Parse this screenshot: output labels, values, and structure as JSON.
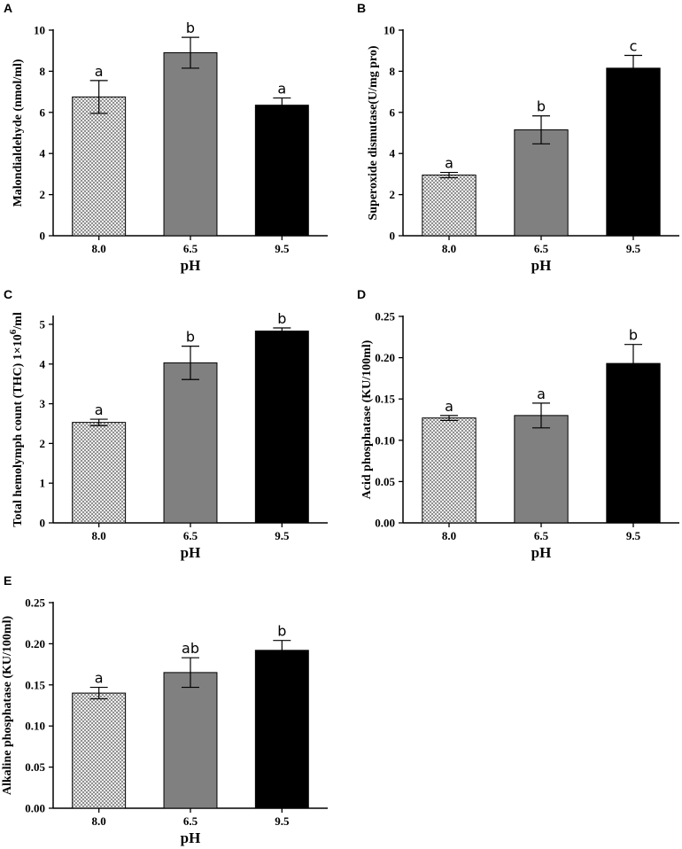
{
  "chart_data": [
    {
      "panel": "A",
      "type": "bar",
      "categories": [
        "8.0",
        "6.5",
        "9.5"
      ],
      "values": [
        6.75,
        8.9,
        6.35
      ],
      "errors": [
        0.8,
        0.75,
        0.35
      ],
      "significance": [
        "a",
        "b",
        "a"
      ],
      "ylim": [
        0,
        10
      ],
      "yticks": [
        "0",
        "2",
        "4",
        "6",
        "8",
        "10"
      ],
      "xlabel": "pH",
      "ylabel": "Malondialdehyde (nmol/ml)",
      "ylabel_parts": null
    },
    {
      "panel": "B",
      "type": "bar",
      "categories": [
        "8.0",
        "6.5",
        "9.5"
      ],
      "values": [
        2.95,
        5.15,
        8.15
      ],
      "errors": [
        0.13,
        0.68,
        0.62
      ],
      "significance": [
        "a",
        "b",
        "c"
      ],
      "ylim": [
        0,
        10
      ],
      "yticks": [
        "0",
        "2",
        "4",
        "6",
        "8",
        "10"
      ],
      "xlabel": "pH",
      "ylabel": "Superoxide dismutase(U/mg pro)",
      "ylabel_parts": null
    },
    {
      "panel": "C",
      "type": "bar",
      "categories": [
        "8.0",
        "6.5",
        "9.5"
      ],
      "values": [
        2.53,
        4.03,
        4.83
      ],
      "errors": [
        0.08,
        0.42,
        0.08
      ],
      "significance": [
        "a",
        "b",
        "b"
      ],
      "ylim": [
        0,
        5.2
      ],
      "yticks": [
        "0",
        "1",
        "2",
        "3",
        "4",
        "5"
      ],
      "xlabel": "pH",
      "ylabel": "Total hemolymph count (THC) 1×10⁶/ml",
      "ylabel_parts": {
        "main": "Total hemolymph count (THC) 1×10",
        "sup": "6",
        "tail": "/ml"
      }
    },
    {
      "panel": "D",
      "type": "bar",
      "categories": [
        "8.0",
        "6.5",
        "9.5"
      ],
      "values": [
        0.127,
        0.13,
        0.193
      ],
      "errors": [
        0.003,
        0.015,
        0.023
      ],
      "significance": [
        "a",
        "a",
        "b"
      ],
      "ylim": [
        0,
        0.25
      ],
      "yticks": [
        "0.00",
        "0.05",
        "0.10",
        "0.15",
        "0.20",
        "0.25"
      ],
      "xlabel": "pH",
      "ylabel": "Acid phosphatase (KU/100ml)",
      "ylabel_parts": null
    },
    {
      "panel": "E",
      "type": "bar",
      "categories": [
        "8.0",
        "6.5",
        "9.5"
      ],
      "values": [
        0.14,
        0.165,
        0.192
      ],
      "errors": [
        0.007,
        0.018,
        0.012
      ],
      "significance": [
        "a",
        "ab",
        "b"
      ],
      "ylim": [
        0,
        0.25
      ],
      "yticks": [
        "0.00",
        "0.05",
        "0.10",
        "0.15",
        "0.20",
        "0.25"
      ],
      "xlabel": "pH",
      "ylabel": "Alkaline phosphatase (KU/100ml)",
      "ylabel_parts": null
    }
  ],
  "colors": {
    "bar_fill": [
      "#ffffff",
      "#808080",
      "#000000"
    ],
    "hatch": "#555555",
    "axis": "#000000"
  }
}
